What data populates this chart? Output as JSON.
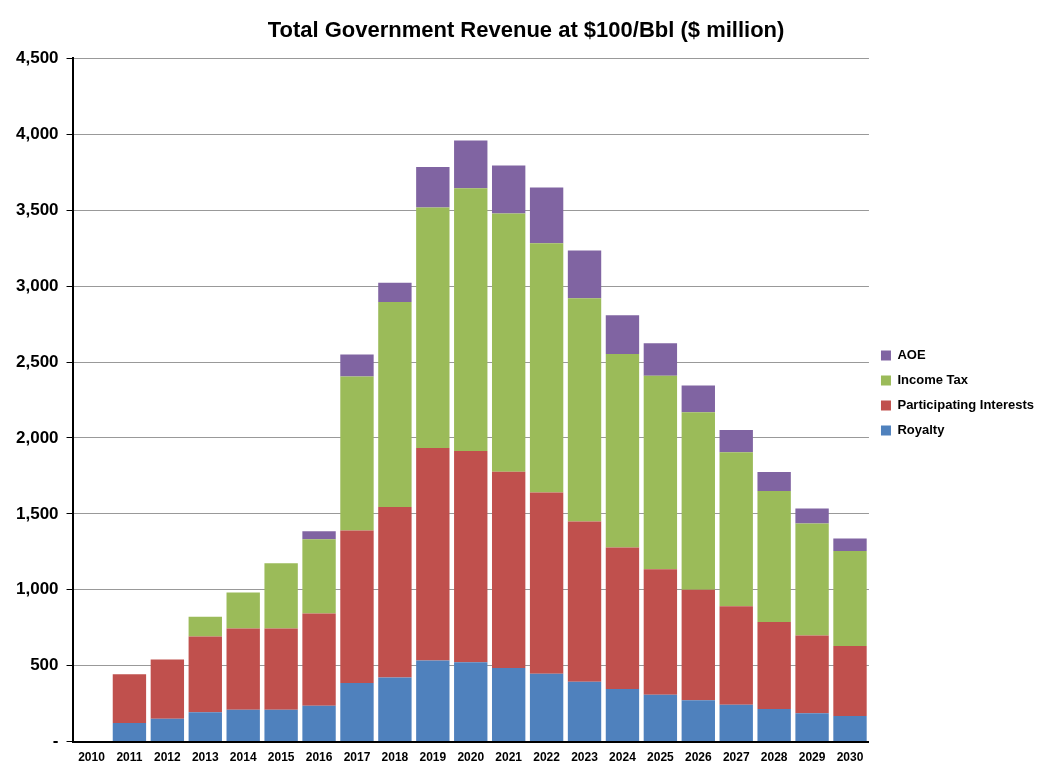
{
  "chart_data": {
    "type": "bar",
    "title": "Total Government Revenue at $100/Bbl ($ million)",
    "stacked": true,
    "categories": [
      "2010",
      "2011",
      "2012",
      "2013",
      "2014",
      "2015",
      "2016",
      "2017",
      "2018",
      "2019",
      "2020",
      "2021",
      "2022",
      "2023",
      "2024",
      "2025",
      "2026",
      "2027",
      "2028",
      "2029",
      "2030"
    ],
    "series": [
      {
        "name": "Royalty",
        "color": "#4f81bd",
        "values": [
          null,
          123,
          150,
          193,
          209,
          209,
          236,
          386,
          423,
          534,
          523,
          485,
          447,
          394,
          346,
          308,
          273,
          242,
          215,
          187,
          169
        ]
      },
      {
        "name": "Participating Interests",
        "color": "#c0504d",
        "values": [
          null,
          320,
          391,
          500,
          536,
          536,
          607,
          1005,
          1122,
          1400,
          1391,
          1293,
          1194,
          1055,
          932,
          828,
          727,
          649,
          573,
          512,
          460
        ]
      },
      {
        "name": "Income Tax",
        "color": "#9bbb59",
        "values": [
          null,
          null,
          null,
          130,
          237,
          430,
          489,
          1014,
          1350,
          1584,
          1730,
          1701,
          1642,
          1472,
          1275,
          1273,
          1169,
          1015,
          863,
          738,
          626
        ]
      },
      {
        "name": "AOE",
        "color": "#8064a2",
        "values": [
          null,
          null,
          null,
          null,
          null,
          null,
          54,
          145,
          128,
          267,
          316,
          316,
          366,
          314,
          255,
          215,
          177,
          147,
          124,
          98,
          83
        ]
      }
    ],
    "ylim": [
      0,
      4500
    ],
    "yticks": [
      {
        "value": 0,
        "label": "-"
      },
      500,
      {
        "value": 1000,
        "label": "1,000"
      },
      {
        "value": 1500,
        "label": "1,500"
      },
      {
        "value": 2000,
        "label": "2,000"
      },
      {
        "value": 2500,
        "label": "2,500"
      },
      {
        "value": 3000,
        "label": "3,000"
      },
      {
        "value": 3500,
        "label": "3,500"
      },
      {
        "value": 4000,
        "label": "4,000"
      },
      {
        "value": 4500,
        "label": "4,500"
      }
    ],
    "grid": "y",
    "legend": "right"
  }
}
